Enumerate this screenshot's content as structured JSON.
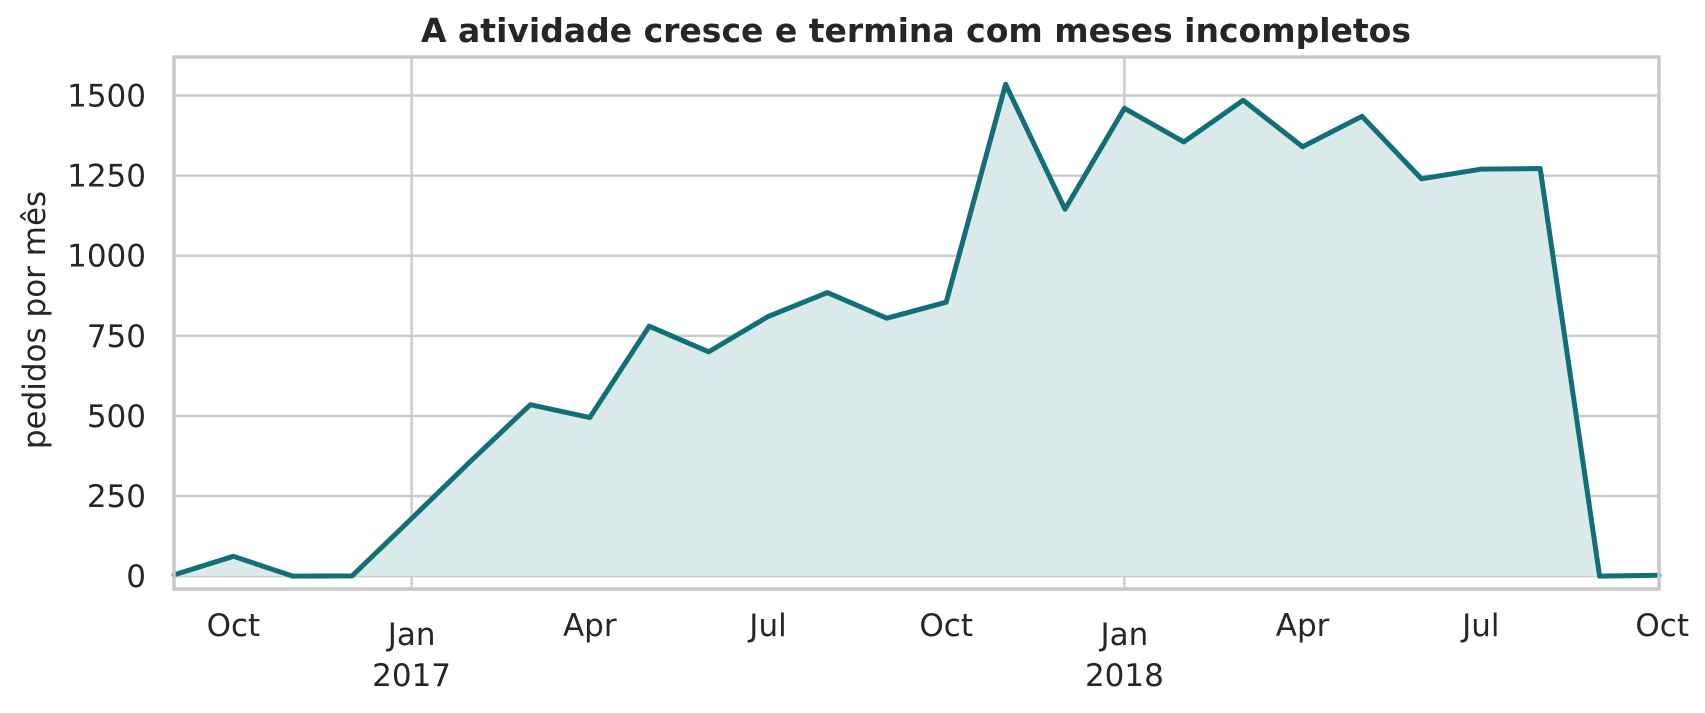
{
  "chart_data": {
    "type": "area",
    "title": "A atividade cresce e termina com meses incompletos",
    "ylabel": "pedidos por mês",
    "xlabel": "",
    "ylim": [
      -40,
      1620
    ],
    "xlim": [
      "2016-09",
      "2018-10"
    ],
    "grid": true,
    "line_color": "#126e78",
    "fill_color": "#dae9ea",
    "y_ticks": [
      0,
      250,
      500,
      750,
      1000,
      1250,
      1500
    ],
    "x_ticks": [
      {
        "month": "2016-10",
        "label": "Oct",
        "year": ""
      },
      {
        "month": "2017-01",
        "label": "Jan",
        "year": "2017"
      },
      {
        "month": "2017-04",
        "label": "Apr",
        "year": ""
      },
      {
        "month": "2017-07",
        "label": "Jul",
        "year": ""
      },
      {
        "month": "2017-10",
        "label": "Oct",
        "year": ""
      },
      {
        "month": "2018-01",
        "label": "Jan",
        "year": "2018"
      },
      {
        "month": "2018-04",
        "label": "Apr",
        "year": ""
      },
      {
        "month": "2018-07",
        "label": "Jul",
        "year": ""
      },
      {
        "month": "2018-10",
        "label": "Oct",
        "year": ""
      }
    ],
    "x": [
      "2016-09",
      "2016-10",
      "2016-11",
      "2016-12",
      "2017-01",
      "2017-02",
      "2017-03",
      "2017-04",
      "2017-05",
      "2017-06",
      "2017-07",
      "2017-08",
      "2017-09",
      "2017-10",
      "2017-11",
      "2017-12",
      "2018-01",
      "2018-02",
      "2018-03",
      "2018-04",
      "2018-05",
      "2018-06",
      "2018-07",
      "2018-08",
      "2018-09",
      "2018-10"
    ],
    "values": [
      4,
      62,
      0,
      1,
      180,
      360,
      535,
      495,
      780,
      700,
      810,
      885,
      805,
      855,
      1535,
      1145,
      1460,
      1355,
      1485,
      1340,
      1435,
      1240,
      1270,
      1272,
      0,
      3
    ]
  }
}
